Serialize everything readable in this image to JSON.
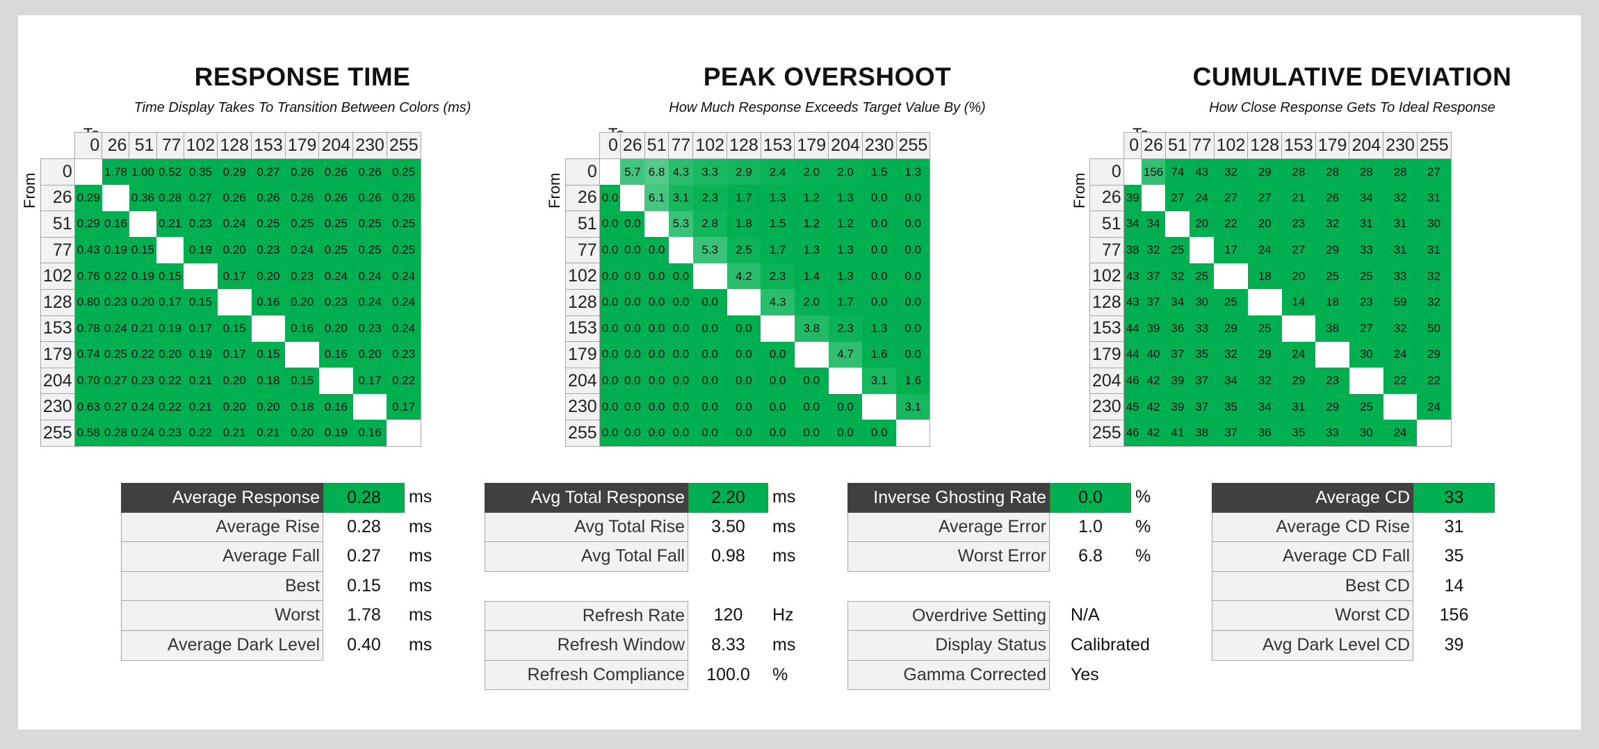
{
  "colors": {
    "good": "#00b050",
    "header_dark": "#404040",
    "header_light": "#f2f2f2"
  },
  "matrices": [
    {
      "title": "RESPONSE TIME",
      "subtitle": "Time Display Takes To Transition Between Colors (ms)",
      "to_label": "To",
      "from_label": "From",
      "columns": [
        "0",
        "26",
        "51",
        "77",
        "102",
        "128",
        "153",
        "179",
        "204",
        "230",
        "255"
      ],
      "rows": [
        "0",
        "26",
        "51",
        "77",
        "102",
        "128",
        "153",
        "179",
        "204",
        "230",
        "255"
      ],
      "values": [
        [
          null,
          "1.78",
          "1.00",
          "0.52",
          "0.35",
          "0.29",
          "0.27",
          "0.26",
          "0.26",
          "0.26",
          "0.25"
        ],
        [
          "0.29",
          null,
          "0.36",
          "0.28",
          "0.27",
          "0.26",
          "0.26",
          "0.26",
          "0.26",
          "0.26",
          "0.26"
        ],
        [
          "0.29",
          "0.16",
          null,
          "0.21",
          "0.23",
          "0.24",
          "0.25",
          "0.25",
          "0.25",
          "0.25",
          "0.25"
        ],
        [
          "0.43",
          "0.19",
          "0.15",
          null,
          "0.19",
          "0.20",
          "0.23",
          "0.24",
          "0.25",
          "0.25",
          "0.25"
        ],
        [
          "0.76",
          "0.22",
          "0.19",
          "0.15",
          null,
          "0.17",
          "0.20",
          "0.23",
          "0.24",
          "0.24",
          "0.24"
        ],
        [
          "0.80",
          "0.23",
          "0.20",
          "0.17",
          "0.15",
          null,
          "0.16",
          "0.20",
          "0.23",
          "0.24",
          "0.24"
        ],
        [
          "0.78",
          "0.24",
          "0.21",
          "0.19",
          "0.17",
          "0.15",
          null,
          "0.16",
          "0.20",
          "0.23",
          "0.24"
        ],
        [
          "0.74",
          "0.25",
          "0.22",
          "0.20",
          "0.19",
          "0.17",
          "0.15",
          null,
          "0.16",
          "0.20",
          "0.23"
        ],
        [
          "0.70",
          "0.27",
          "0.23",
          "0.22",
          "0.21",
          "0.20",
          "0.18",
          "0.15",
          null,
          "0.17",
          "0.22"
        ],
        [
          "0.63",
          "0.27",
          "0.24",
          "0.22",
          "0.21",
          "0.20",
          "0.20",
          "0.18",
          "0.16",
          null,
          "0.17"
        ],
        [
          "0.58",
          "0.28",
          "0.24",
          "0.23",
          "0.22",
          "0.21",
          "0.21",
          "0.20",
          "0.19",
          "0.16",
          null
        ]
      ]
    },
    {
      "title": "PEAK OVERSHOOT",
      "subtitle": "How Much Response Exceeds Target Value By (%)",
      "to_label": "To",
      "from_label": "From",
      "columns": [
        "0",
        "26",
        "51",
        "77",
        "102",
        "128",
        "153",
        "179",
        "204",
        "230",
        "255"
      ],
      "rows": [
        "0",
        "26",
        "51",
        "77",
        "102",
        "128",
        "153",
        "179",
        "204",
        "230",
        "255"
      ],
      "values": [
        [
          null,
          "5.7",
          "6.8",
          "4.3",
          "3.3",
          "2.9",
          "2.4",
          "2.0",
          "2.0",
          "1.5",
          "1.3"
        ],
        [
          "0.0",
          null,
          "6.1",
          "3.1",
          "2.3",
          "1.7",
          "1.3",
          "1.2",
          "1.3",
          "0.0",
          "0.0"
        ],
        [
          "0.0",
          "0.0",
          null,
          "5.3",
          "2.8",
          "1.8",
          "1.5",
          "1.2",
          "1.2",
          "0.0",
          "0.0"
        ],
        [
          "0.0",
          "0.0",
          "0.0",
          null,
          "5.3",
          "2.5",
          "1.7",
          "1.3",
          "1.3",
          "0.0",
          "0.0"
        ],
        [
          "0.0",
          "0.0",
          "0.0",
          "0.0",
          null,
          "4.2",
          "2.3",
          "1.4",
          "1.3",
          "0.0",
          "0.0"
        ],
        [
          "0.0",
          "0.0",
          "0.0",
          "0.0",
          "0.0",
          null,
          "4.3",
          "2.0",
          "1.7",
          "0.0",
          "0.0"
        ],
        [
          "0.0",
          "0.0",
          "0.0",
          "0.0",
          "0.0",
          "0.0",
          null,
          "3.8",
          "2.3",
          "1.3",
          "0.0"
        ],
        [
          "0.0",
          "0.0",
          "0.0",
          "0.0",
          "0.0",
          "0.0",
          "0.0",
          null,
          "4.7",
          "1.6",
          "0.0"
        ],
        [
          "0.0",
          "0.0",
          "0.0",
          "0.0",
          "0.0",
          "0.0",
          "0.0",
          "0.0",
          null,
          "3.1",
          "1.6"
        ],
        [
          "0.0",
          "0.0",
          "0.0",
          "0.0",
          "0.0",
          "0.0",
          "0.0",
          "0.0",
          "0.0",
          null,
          "3.1"
        ],
        [
          "0.0",
          "0.0",
          "0.0",
          "0.0",
          "0.0",
          "0.0",
          "0.0",
          "0.0",
          "0.0",
          "0.0",
          null
        ]
      ]
    },
    {
      "title": "CUMULATIVE DEVIATION",
      "subtitle": "How Close Response Gets To Ideal Response",
      "to_label": "To",
      "from_label": "From",
      "columns": [
        "0",
        "26",
        "51",
        "77",
        "102",
        "128",
        "153",
        "179",
        "204",
        "230",
        "255"
      ],
      "rows": [
        "0",
        "26",
        "51",
        "77",
        "102",
        "128",
        "153",
        "179",
        "204",
        "230",
        "255"
      ],
      "values": [
        [
          null,
          "156",
          "74",
          "43",
          "32",
          "29",
          "28",
          "28",
          "28",
          "28",
          "27"
        ],
        [
          "39",
          null,
          "27",
          "24",
          "27",
          "27",
          "21",
          "26",
          "34",
          "32",
          "31"
        ],
        [
          "34",
          "34",
          null,
          "20",
          "22",
          "20",
          "23",
          "32",
          "31",
          "31",
          "30"
        ],
        [
          "38",
          "32",
          "25",
          null,
          "17",
          "24",
          "27",
          "29",
          "33",
          "31",
          "31"
        ],
        [
          "43",
          "37",
          "32",
          "25",
          null,
          "18",
          "20",
          "25",
          "25",
          "33",
          "32"
        ],
        [
          "43",
          "37",
          "34",
          "30",
          "25",
          null,
          "14",
          "18",
          "23",
          "59",
          "32"
        ],
        [
          "44",
          "39",
          "36",
          "33",
          "29",
          "25",
          null,
          "38",
          "27",
          "32",
          "50"
        ],
        [
          "44",
          "40",
          "37",
          "35",
          "32",
          "29",
          "24",
          null,
          "30",
          "24",
          "29"
        ],
        [
          "46",
          "42",
          "39",
          "37",
          "34",
          "32",
          "29",
          "23",
          null,
          "22",
          "22"
        ],
        [
          "45",
          "42",
          "39",
          "37",
          "35",
          "34",
          "31",
          "29",
          "25",
          null,
          "24"
        ],
        [
          "46",
          "42",
          "41",
          "38",
          "37",
          "36",
          "35",
          "33",
          "30",
          "24",
          null
        ]
      ]
    }
  ],
  "stats": [
    {
      "blocks": [
        [
          {
            "label": "Average Response",
            "value": "0.28",
            "unit": "ms",
            "highlight": true
          },
          {
            "label": "Average Rise",
            "value": "0.28",
            "unit": "ms"
          },
          {
            "label": "Average Fall",
            "value": "0.27",
            "unit": "ms"
          },
          {
            "label": "Best",
            "value": "0.15",
            "unit": "ms"
          },
          {
            "label": "Worst",
            "value": "1.78",
            "unit": "ms"
          },
          {
            "label": "Average Dark Level",
            "value": "0.40",
            "unit": "ms"
          }
        ]
      ]
    },
    {
      "blocks": [
        [
          {
            "label": "Avg Total Response",
            "value": "2.20",
            "unit": "ms",
            "highlight": true
          },
          {
            "label": "Avg Total Rise",
            "value": "3.50",
            "unit": "ms"
          },
          {
            "label": "Avg Total Fall",
            "value": "0.98",
            "unit": "ms"
          }
        ],
        [
          {
            "label": "Refresh Rate",
            "value": "120",
            "unit": "Hz"
          },
          {
            "label": "Refresh Window",
            "value": "8.33",
            "unit": "ms"
          },
          {
            "label": "Refresh Compliance",
            "value": "100.0",
            "unit": "%"
          }
        ]
      ]
    },
    {
      "blocks": [
        [
          {
            "label": "Inverse Ghosting Rate",
            "value": "0.0",
            "unit": "%",
            "highlight": true
          },
          {
            "label": "Average Error",
            "value": "1.0",
            "unit": "%"
          },
          {
            "label": "Worst Error",
            "value": "6.8",
            "unit": "%"
          }
        ],
        [
          {
            "label": "Overdrive Setting",
            "value": "N/A",
            "unit": ""
          },
          {
            "label": "Display Status",
            "value": "Calibrated",
            "unit": ""
          },
          {
            "label": "Gamma Corrected",
            "value": "Yes",
            "unit": ""
          }
        ]
      ]
    },
    {
      "blocks": [
        [
          {
            "label": "Average CD",
            "value": "33",
            "unit": "",
            "highlight": true
          },
          {
            "label": "Average CD Rise",
            "value": "31",
            "unit": ""
          },
          {
            "label": "Average CD Fall",
            "value": "35",
            "unit": ""
          },
          {
            "label": "Best CD",
            "value": "14",
            "unit": ""
          },
          {
            "label": "Worst CD",
            "value": "156",
            "unit": ""
          },
          {
            "label": "Avg Dark Level CD",
            "value": "39",
            "unit": ""
          }
        ]
      ]
    }
  ]
}
